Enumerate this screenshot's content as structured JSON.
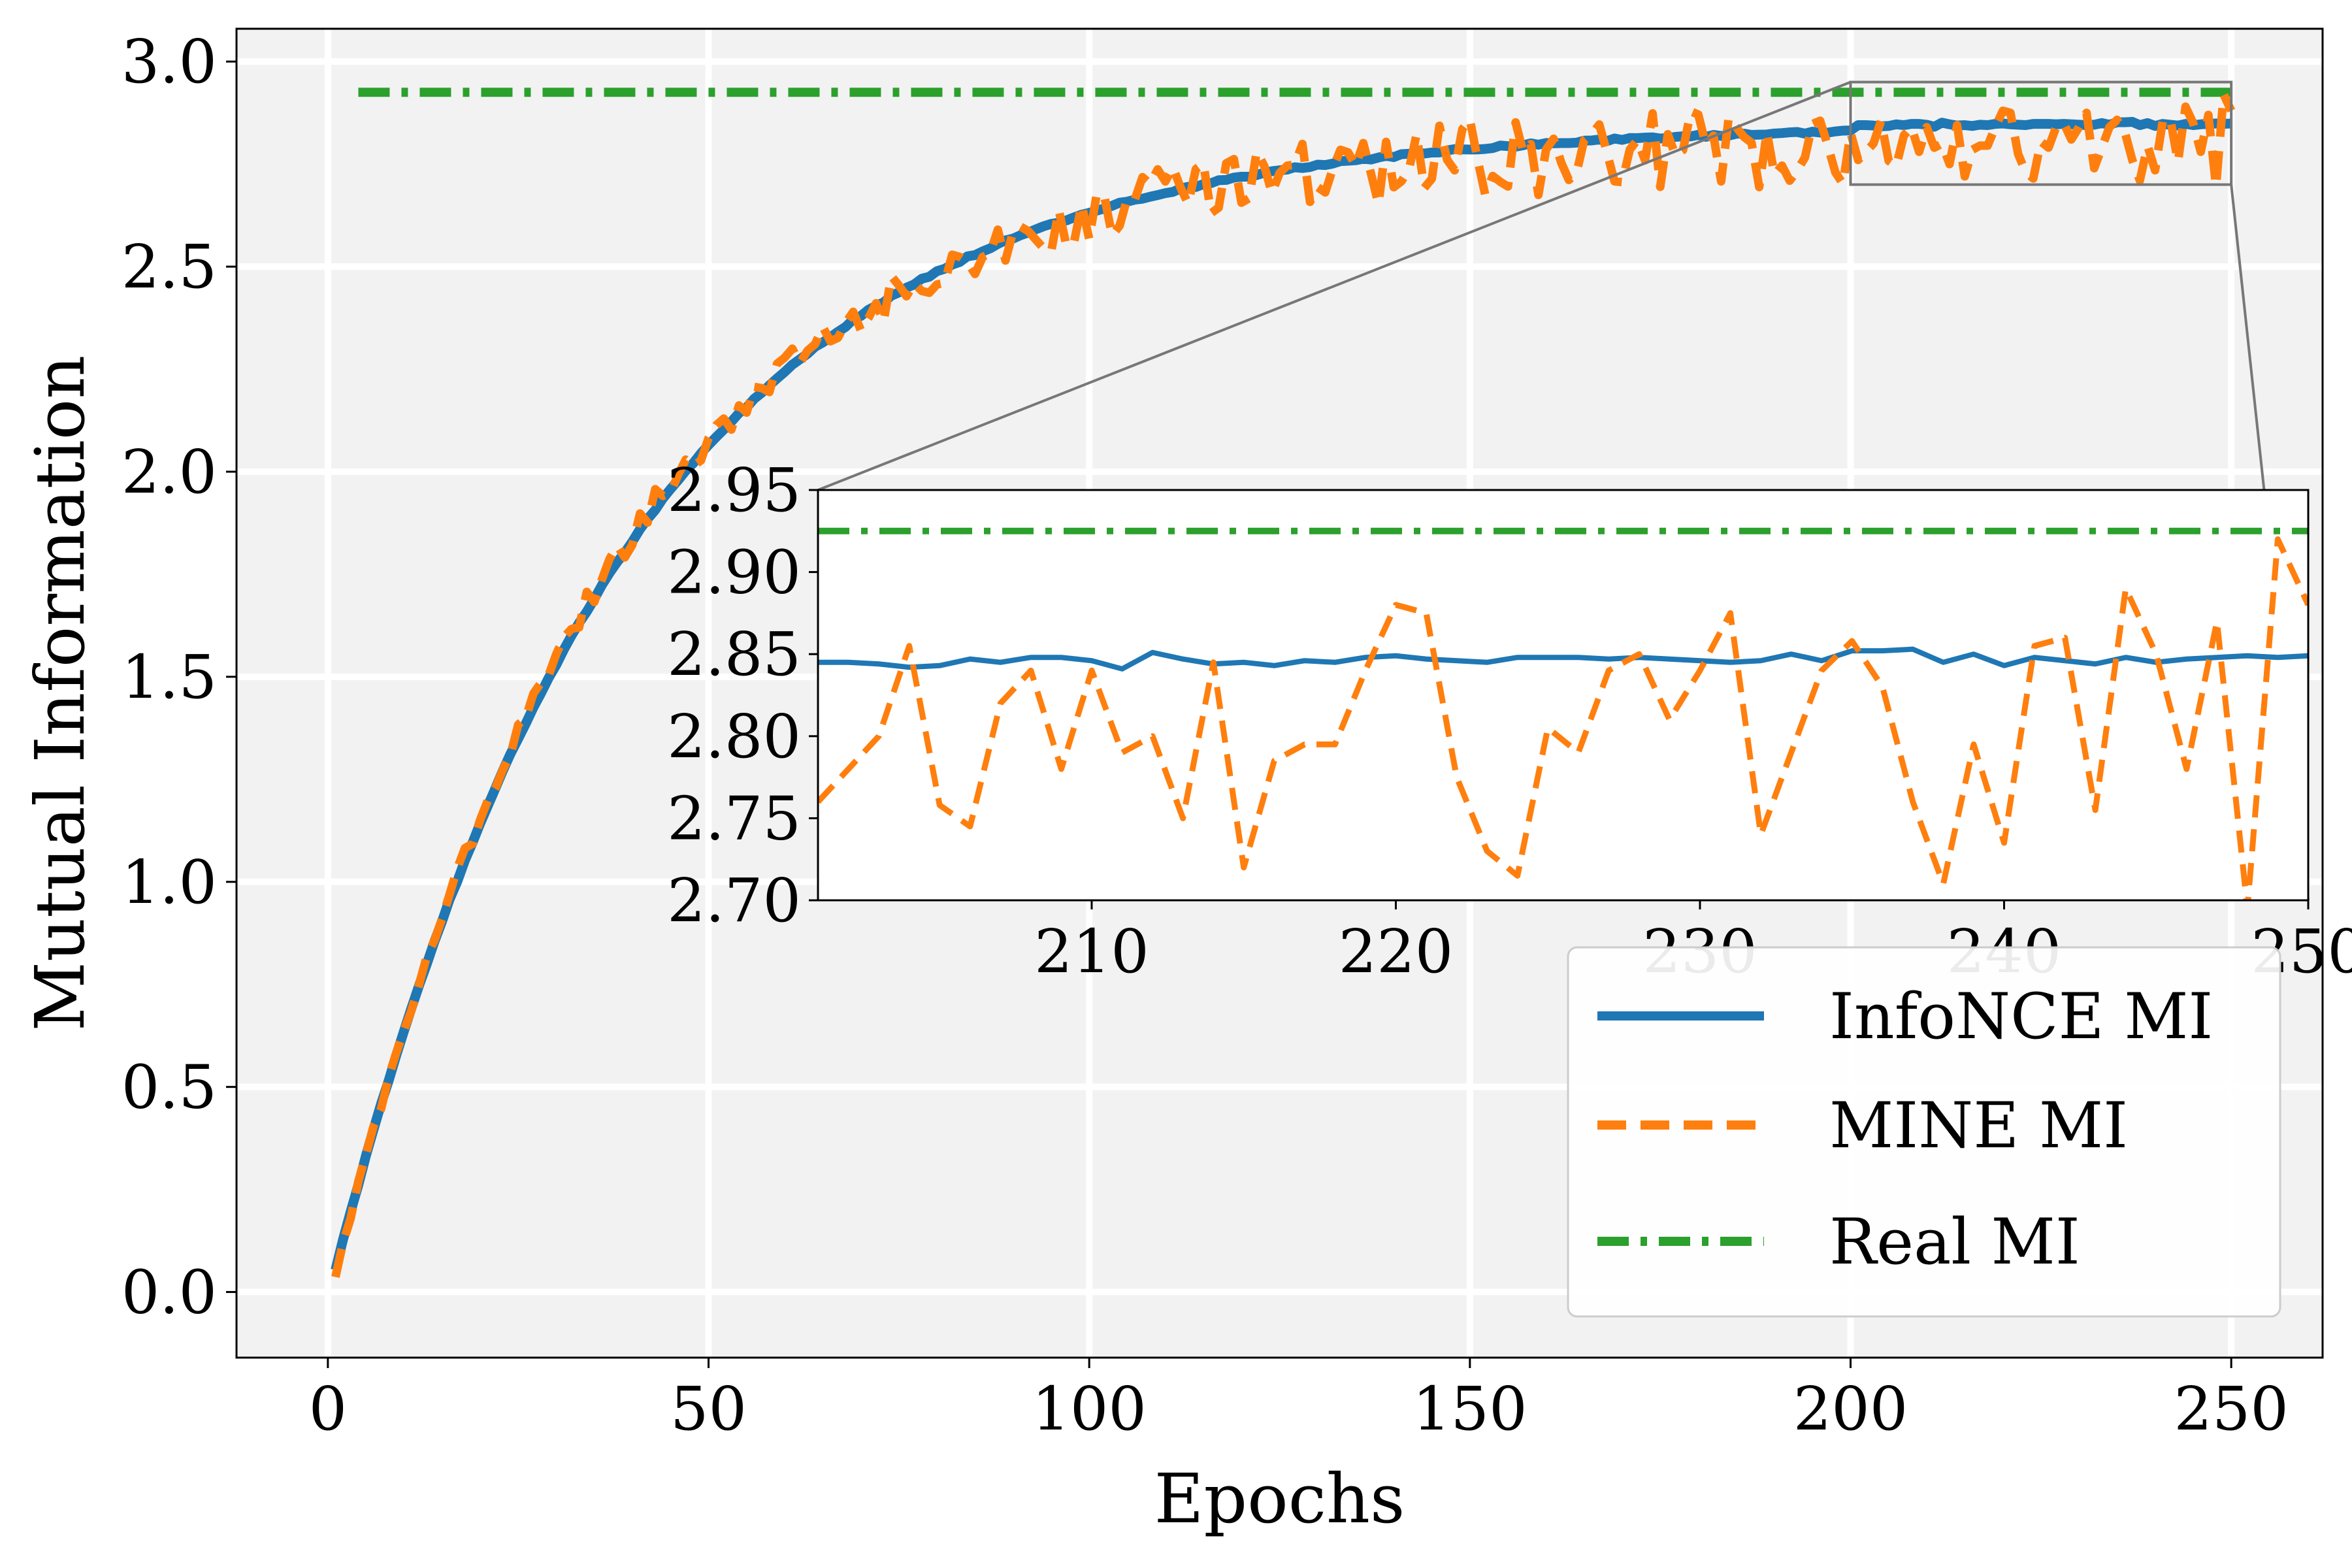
{
  "chart_data": {
    "type": "line",
    "xlabel": "Epochs",
    "ylabel": "Mutual Information",
    "xlim": [
      -12,
      262
    ],
    "ylim": [
      -0.16,
      3.08
    ],
    "xticks": [
      0,
      50,
      100,
      150,
      200,
      250
    ],
    "yticks": [
      0.0,
      0.5,
      1.0,
      1.5,
      2.0,
      2.5,
      3.0
    ],
    "xtick_labels": [
      "0",
      "50",
      "100",
      "150",
      "200",
      "250"
    ],
    "ytick_labels": [
      "0.0",
      "0.5",
      "1.0",
      "1.5",
      "2.0",
      "2.5",
      "3.0"
    ],
    "grid": true,
    "legend_position": "lower-right",
    "series": [
      {
        "name": "InfoNCE MI",
        "color": "#1f77b4",
        "style": "solid",
        "model": {
          "kind": "saturating",
          "start": -0.02,
          "plateau": 2.845,
          "rate": 0.026
        },
        "zoom_values": [
          2.845,
          2.845,
          2.844,
          2.842,
          2.843,
          2.847,
          2.845,
          2.848,
          2.848,
          2.846,
          2.841,
          2.851,
          2.847,
          2.844,
          2.845,
          2.843,
          2.846,
          2.845,
          2.848,
          2.849,
          2.847,
          2.846,
          2.845,
          2.848,
          2.848,
          2.848,
          2.847,
          2.848,
          2.847,
          2.846,
          2.845,
          2.846,
          2.85,
          2.846,
          2.852,
          2.852,
          2.853,
          2.845,
          2.85,
          2.843,
          2.848,
          2.846,
          2.844,
          2.848,
          2.845,
          2.847,
          2.848,
          2.849,
          2.848,
          2.849,
          2.849
        ]
      },
      {
        "name": "MINE MI",
        "color": "#ff7f0e",
        "style": "dashed",
        "model": {
          "kind": "saturating_noisy",
          "start": -0.03,
          "plateau": 2.82,
          "rate": 0.027,
          "noise_growth": true
        },
        "zoom_values": [
          2.76,
          2.78,
          2.8,
          2.855,
          2.758,
          2.745,
          2.82,
          2.84,
          2.78,
          2.84,
          2.79,
          2.8,
          2.75,
          2.845,
          2.72,
          2.785,
          2.795,
          2.795,
          2.84,
          2.88,
          2.875,
          2.775,
          2.73,
          2.715,
          2.805,
          2.79,
          2.84,
          2.85,
          2.81,
          2.84,
          2.875,
          2.74,
          2.79,
          2.84,
          2.858,
          2.83,
          2.76,
          2.71,
          2.795,
          2.735,
          2.855,
          2.86,
          2.755,
          2.89,
          2.85,
          2.78,
          2.87,
          2.695,
          2.92,
          2.88,
          2.78
        ]
      },
      {
        "name": "Real MI",
        "color": "#2ca02c",
        "style": "dashdot",
        "constant": 2.925
      }
    ],
    "x_start": 1,
    "x_end": 250,
    "inset": {
      "xlim": [
        201,
        250
      ],
      "ylim": [
        2.7,
        2.95
      ],
      "xticks": [
        210,
        220,
        230,
        240,
        250
      ],
      "yticks": [
        2.7,
        2.75,
        2.8,
        2.85,
        2.9,
        2.95
      ],
      "xtick_labels": [
        "210",
        "220",
        "230",
        "240",
        "250"
      ],
      "ytick_labels": [
        "2.70",
        "2.75",
        "2.80",
        "2.85",
        "2.90",
        "2.95"
      ],
      "zoom_region": {
        "x": [
          200,
          250
        ],
        "y": [
          2.7,
          2.95
        ]
      }
    }
  }
}
